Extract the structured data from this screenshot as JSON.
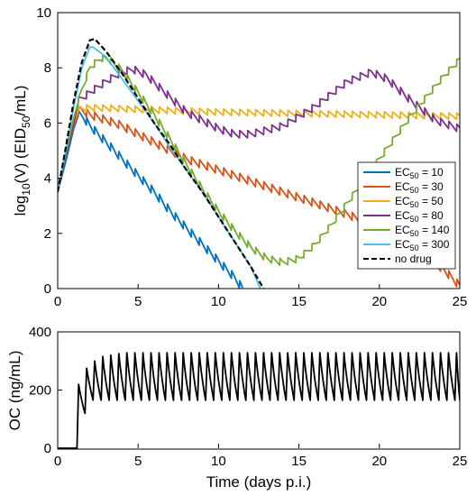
{
  "chart_data": [
    {
      "type": "line",
      "ylabel_parts": {
        "pre": "log",
        "sub1": "10",
        "mid": "(V) (EID",
        "sub2": "50",
        "post": "/mL)"
      },
      "xlim": [
        0,
        25
      ],
      "ylim": [
        0,
        10
      ],
      "xticks": [
        0,
        5,
        10,
        15,
        20,
        25
      ],
      "yticks": [
        0,
        2,
        4,
        6,
        8,
        10
      ],
      "grid": false,
      "legend_position": "right-middle",
      "legend_label_prefix": "EC",
      "legend_label_sub": "50",
      "series": [
        {
          "legend_value": "= 10",
          "color": "#0072BD",
          "dash": false,
          "x": [
            0,
            0.5,
            1,
            1.3,
            1.6,
            2,
            3,
            4,
            5,
            6,
            7,
            8,
            9,
            10,
            11,
            11.5
          ],
          "y": [
            3.5,
            4.6,
            5.8,
            6.3,
            6.2,
            5.9,
            5.3,
            4.7,
            4.1,
            3.5,
            2.8,
            2.2,
            1.6,
            1.0,
            0.4,
            0
          ],
          "osc": 0.15
        },
        {
          "legend_value": "= 30",
          "color": "#D95319",
          "dash": false,
          "x": [
            0,
            0.5,
            1,
            1.4,
            2,
            3,
            4,
            5,
            6,
            7,
            8,
            10,
            12,
            14,
            16,
            18,
            20,
            22,
            24,
            25
          ],
          "y": [
            3.5,
            4.8,
            5.9,
            6.5,
            6.3,
            6.1,
            5.9,
            5.6,
            5.3,
            5.0,
            4.7,
            4.3,
            3.9,
            3.5,
            3.1,
            2.7,
            2.2,
            1.5,
            0.7,
            0.1
          ],
          "osc": 0.15
        },
        {
          "legend_value": "= 50",
          "color": "#EDB120",
          "dash": false,
          "x": [
            0,
            0.5,
            1,
            1.3,
            2,
            5,
            10,
            15,
            20,
            25
          ],
          "y": [
            3.5,
            4.9,
            6.0,
            6.5,
            6.55,
            6.5,
            6.4,
            6.35,
            6.3,
            6.25
          ],
          "osc": 0.12
        },
        {
          "legend_value": "= 80",
          "color": "#7E2F8E",
          "dash": false,
          "x": [
            0,
            0.5,
            1,
            1.3,
            2,
            3,
            4,
            4.7,
            5.5,
            6.5,
            8,
            10,
            11,
            12,
            14,
            16,
            18,
            19.5,
            20.5,
            22,
            23.5,
            25
          ],
          "y": [
            3.5,
            4.8,
            6.0,
            6.8,
            7.1,
            7.5,
            7.85,
            7.95,
            7.75,
            7.2,
            6.4,
            5.8,
            5.6,
            5.6,
            5.9,
            6.6,
            7.5,
            7.85,
            7.6,
            6.8,
            6.1,
            5.8
          ],
          "osc": 0.14
        },
        {
          "legend_value": "= 140",
          "color": "#77AC30",
          "dash": false,
          "x": [
            0,
            0.5,
            1,
            1.5,
            2,
            2.7,
            3.2,
            4,
            5,
            6,
            7,
            8,
            9,
            10,
            11,
            12,
            13,
            14,
            15,
            16,
            17,
            18,
            19,
            20,
            21,
            22,
            23,
            24,
            25
          ],
          "y": [
            3.5,
            4.9,
            6.2,
            7.2,
            8.0,
            8.35,
            8.3,
            7.9,
            7.1,
            6.3,
            5.4,
            4.5,
            3.6,
            2.8,
            2.1,
            1.5,
            1.1,
            0.95,
            1.1,
            1.6,
            2.3,
            3.1,
            3.9,
            4.7,
            5.5,
            6.3,
            7.0,
            7.7,
            8.3
          ],
          "osc": 0.13
        },
        {
          "legend_value": "= 300",
          "color": "#4DBEEE",
          "dash": false,
          "x": [
            0,
            0.5,
            1,
            1.5,
            2,
            2.2,
            3,
            4,
            5,
            6,
            7,
            8,
            9,
            10,
            11,
            12,
            12.6
          ],
          "y": [
            3.5,
            5.0,
            6.6,
            8.0,
            8.75,
            8.75,
            8.4,
            7.6,
            6.8,
            6.0,
            5.1,
            4.3,
            3.5,
            2.6,
            1.7,
            0.8,
            0
          ],
          "osc": 0
        },
        {
          "legend_value": "no drug",
          "color": "#000000",
          "dash": true,
          "x": [
            0,
            0.5,
            1,
            1.5,
            2,
            2.3,
            3,
            4,
            5,
            6,
            7,
            8,
            9,
            10,
            11,
            12,
            12.8
          ],
          "y": [
            3.5,
            5.1,
            6.8,
            8.2,
            9.0,
            9.05,
            8.6,
            7.8,
            6.9,
            6.0,
            5.2,
            4.3,
            3.5,
            2.6,
            1.7,
            0.8,
            0
          ],
          "osc": 0
        }
      ]
    },
    {
      "type": "line",
      "ylabel": "OC (ng/mL)",
      "xlabel": "Time (days p.i.)",
      "xlim": [
        0,
        25
      ],
      "ylim": [
        0,
        400
      ],
      "xticks": [
        0,
        5,
        10,
        15,
        20,
        25
      ],
      "yticks": [
        0,
        200,
        400
      ],
      "grid": false,
      "series": [
        {
          "color": "#000000",
          "dose_start": 1.2,
          "dose_period": 0.5,
          "peaks": [
            220,
            275,
            300,
            315,
            320,
            325
          ],
          "peak_steady": 328,
          "trough_steady": 165,
          "first_trough": 120
        }
      ]
    }
  ]
}
